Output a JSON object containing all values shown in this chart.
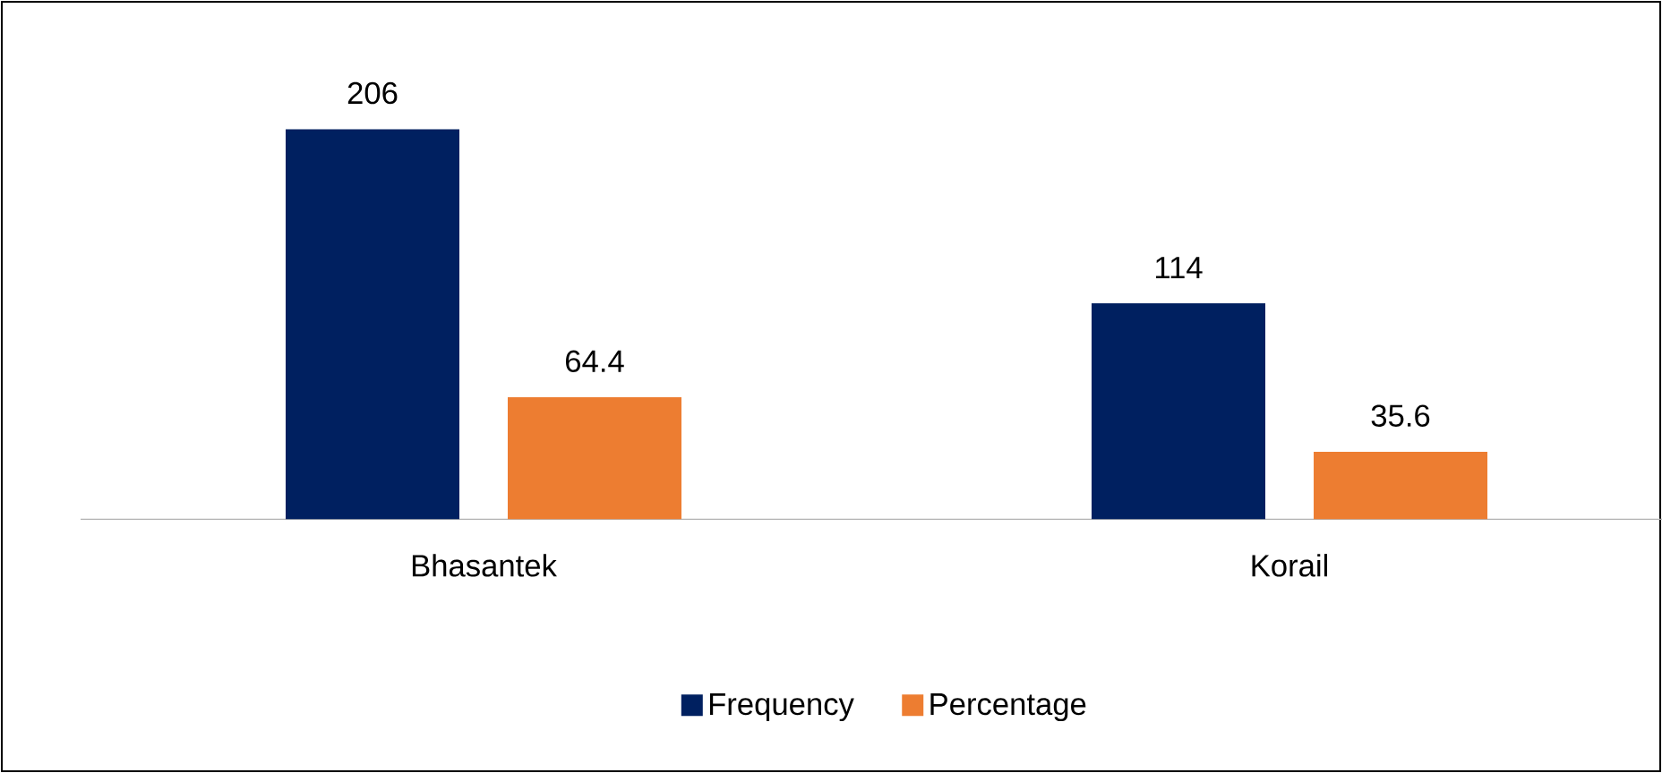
{
  "chart_data": {
    "type": "bar",
    "categories": [
      "Bhasantek",
      "Korail"
    ],
    "series": [
      {
        "name": "Frequency",
        "color": "#002060",
        "values": [
          206,
          114
        ]
      },
      {
        "name": "Percentage",
        "color": "#ED7D31",
        "values": [
          64.4,
          35.6
        ]
      }
    ],
    "data_labels": true,
    "legend": "bottom"
  }
}
